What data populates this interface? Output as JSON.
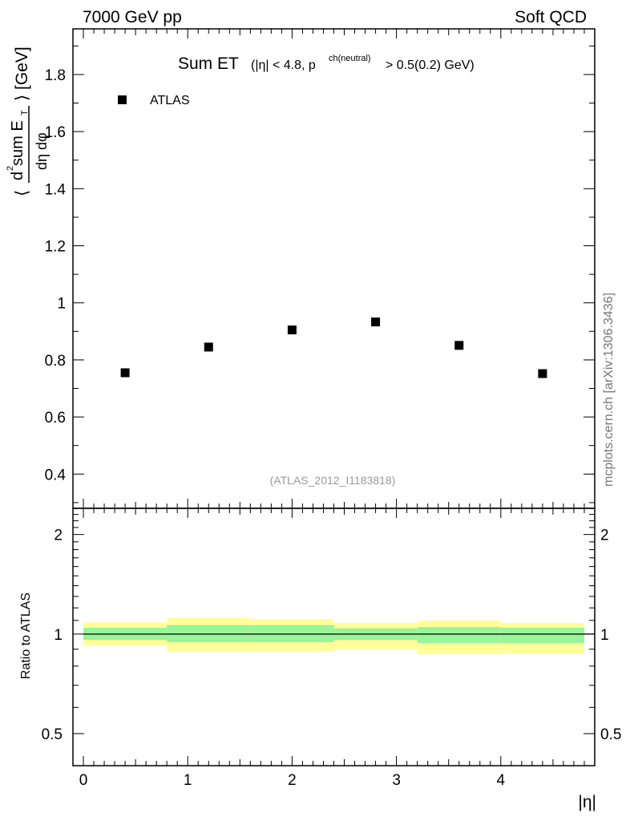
{
  "header": {
    "left": "7000 GeV pp",
    "right": "Soft QCD"
  },
  "side_label": "mcplots.cern.ch [arXiv:1306.3436]",
  "chart_data": [
    {
      "type": "scatter",
      "title_main": "Sum ET",
      "title_cut_prefix": "(|η| < 4.8, p",
      "title_cut_sup": "ch(neutral)",
      "title_cut_suffix": "> 0.5(0.2) GeV)",
      "ylabel": "⟨ d²sum E_T / dη dφ ⟩ [GeV]",
      "ylabel_parts": {
        "open": "⟨",
        "num_prefix": "d",
        "num_sup": "2",
        "num_main": "sum E",
        "num_sub": "T",
        "den": "dη dφ",
        "close": "⟩ [GeV]"
      },
      "ylim": [
        0.28,
        1.96
      ],
      "yticks": [
        0.4,
        0.6,
        0.8,
        1.0,
        1.2,
        1.4,
        1.6,
        1.8
      ],
      "ytick_labels": [
        "0.4",
        "0.6",
        "0.8",
        "1",
        "1.2",
        "1.4",
        "1.6",
        "1.8"
      ],
      "series": [
        {
          "name": "ATLAS",
          "x": [
            0.4,
            1.2,
            2.0,
            2.8,
            3.6,
            4.4
          ],
          "y": [
            0.755,
            0.845,
            0.905,
            0.933,
            0.851,
            0.752
          ]
        }
      ],
      "legend_placement": "top-left",
      "watermark": "(ATLAS_2012_I1183818)"
    },
    {
      "type": "area",
      "ylabel": "Ratio to ATLAS",
      "xlabel": "|η|",
      "xlim": [
        -0.1,
        4.9
      ],
      "xticks": [
        0,
        1,
        2,
        3,
        4
      ],
      "xtick_labels": [
        "0",
        "1",
        "2",
        "3",
        "4"
      ],
      "ylim": [
        0.4,
        2.4
      ],
      "ylog": true,
      "yticks": [
        0.5,
        1,
        2
      ],
      "ytick_labels": [
        "0.5",
        "1",
        "2"
      ],
      "bins": [
        [
          0.0,
          0.8
        ],
        [
          0.8,
          1.6
        ],
        [
          1.6,
          2.4
        ],
        [
          2.4,
          3.2
        ],
        [
          3.2,
          4.0
        ],
        [
          4.0,
          4.8
        ]
      ],
      "band_inner": {
        "color": "#99f599",
        "low": [
          0.96,
          0.945,
          0.945,
          0.96,
          0.94,
          0.94
        ],
        "high": [
          1.045,
          1.065,
          1.065,
          1.04,
          1.05,
          1.045
        ]
      },
      "band_outer": {
        "color": "#ffff99",
        "low": [
          0.925,
          0.885,
          0.885,
          0.9,
          0.87,
          0.875
        ],
        "high": [
          1.085,
          1.12,
          1.11,
          1.08,
          1.1,
          1.08
        ]
      },
      "reference_line": 1.0
    }
  ]
}
